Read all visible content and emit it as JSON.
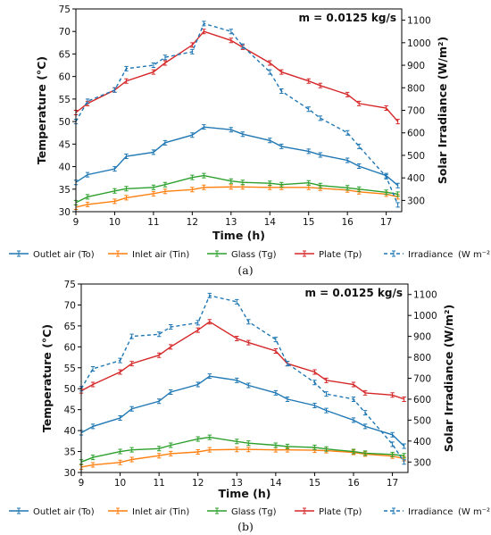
{
  "chart_data": [
    {
      "type": "line",
      "caption": "(a)",
      "annotation": "m = 0.0125 kg/s",
      "xlabel": "Time (h)",
      "ylabel": "Temperature (°C)",
      "y2label": "Solar Irradiance (W/m²)",
      "xlim": [
        9,
        17.4
      ],
      "ylim": [
        30,
        75
      ],
      "y2lim": [
        250,
        1150
      ],
      "xticks": [
        "9",
        "10",
        "11",
        "12",
        "13",
        "14",
        "15",
        "16",
        "17"
      ],
      "yticks": [
        "30",
        "35",
        "40",
        "45",
        "50",
        "55",
        "60",
        "65",
        "70",
        "75"
      ],
      "y2ticks": [
        "300",
        "400",
        "500",
        "600",
        "700",
        "800",
        "900",
        "1000",
        "1100"
      ],
      "legend_placement": "bottom",
      "series": [
        {
          "name": "Outlet air (To)",
          "color": "#1f77b4",
          "axis": "left",
          "style": "solid",
          "x": [
            9,
            9.3,
            10,
            10.3,
            11,
            11.3,
            12,
            12.3,
            13,
            13.3,
            14,
            14.3,
            15,
            15.3,
            16,
            16.3,
            17,
            17.3
          ],
          "y": [
            36.5,
            38.2,
            39.5,
            42.3,
            43.2,
            45.3,
            47.0,
            48.8,
            48.2,
            47.2,
            45.8,
            44.5,
            43.4,
            42.6,
            41.4,
            40.1,
            38.0,
            35.8
          ]
        },
        {
          "name": "Inlet air (Tin)",
          "color": "#ff7f0e",
          "axis": "left",
          "style": "solid",
          "x": [
            9,
            9.3,
            10,
            10.3,
            11,
            11.3,
            12,
            12.3,
            13,
            13.3,
            14,
            14.3,
            15,
            15.3,
            16,
            16.3,
            17,
            17.3
          ],
          "y": [
            31.0,
            31.6,
            32.3,
            33.1,
            34.0,
            34.5,
            34.9,
            35.4,
            35.5,
            35.5,
            35.4,
            35.4,
            35.4,
            35.2,
            34.8,
            34.4,
            33.9,
            33.3
          ]
        },
        {
          "name": "Glass (Tg)",
          "color": "#2ca02c",
          "axis": "left",
          "style": "solid",
          "x": [
            9,
            9.3,
            10,
            10.3,
            11,
            11.3,
            12,
            12.3,
            13,
            13.3,
            14,
            14.3,
            15,
            15.3,
            16,
            16.3,
            17,
            17.3
          ],
          "y": [
            32.0,
            33.3,
            34.6,
            35.1,
            35.4,
            36.0,
            37.6,
            38.0,
            36.8,
            36.5,
            36.3,
            36.0,
            36.4,
            35.8,
            35.3,
            35.0,
            34.3,
            33.9
          ]
        },
        {
          "name": "Plate (Tp)",
          "color": "#d62728",
          "axis": "left",
          "style": "solid",
          "x": [
            9,
            9.3,
            10,
            10.3,
            11,
            11.3,
            12,
            12.3,
            13,
            13.3,
            14,
            14.3,
            15,
            15.3,
            16,
            16.3,
            17,
            17.3
          ],
          "y": [
            52.0,
            54.0,
            57.0,
            59.0,
            61.0,
            63.0,
            67.0,
            70.0,
            68.0,
            66.5,
            63.0,
            61.0,
            59.0,
            58.0,
            56.0,
            54.0,
            53.0,
            50.0
          ]
        },
        {
          "name": "Irradiance",
          "name_unit": "(W m⁻²)",
          "color": "#1f77b4",
          "axis": "right",
          "style": "dashed",
          "x": [
            9,
            9.3,
            10,
            10.3,
            11,
            11.3,
            12,
            12.3,
            13,
            13.3,
            14,
            14.3,
            15,
            15.3,
            16,
            16.3,
            17,
            17.3
          ],
          "y": [
            650,
            740,
            790,
            885,
            900,
            935,
            960,
            1085,
            1050,
            985,
            870,
            785,
            705,
            665,
            600,
            540,
            405,
            280
          ]
        }
      ]
    },
    {
      "type": "line",
      "caption": "(b)",
      "annotation": "m = 0.0125 kg/s",
      "xlabel": "Time (h)",
      "ylabel": "Temperature (°C)",
      "y2label": "Solar Irradiance (W/m²)",
      "xlim": [
        9,
        17.4
      ],
      "ylim": [
        30,
        75
      ],
      "y2lim": [
        250,
        1150
      ],
      "xticks": [
        "9",
        "10",
        "11",
        "12",
        "13",
        "14",
        "15",
        "16",
        "17"
      ],
      "yticks": [
        "30",
        "35",
        "40",
        "45",
        "50",
        "55",
        "60",
        "65",
        "70",
        "75"
      ],
      "y2ticks": [
        "300",
        "400",
        "500",
        "600",
        "700",
        "800",
        "900",
        "1000",
        "1100"
      ],
      "legend_placement": "bottom",
      "series": [
        {
          "name": "Outlet air (To)",
          "color": "#1f77b4",
          "axis": "left",
          "style": "solid",
          "x": [
            9,
            9.3,
            10,
            10.3,
            11,
            11.3,
            12,
            12.3,
            13,
            13.3,
            14,
            14.3,
            15,
            15.3,
            16,
            16.3,
            17,
            17.3
          ],
          "y": [
            39.5,
            41.0,
            43.0,
            45.2,
            47.0,
            49.2,
            51.0,
            53.0,
            52.0,
            50.8,
            49.0,
            47.5,
            46.0,
            44.8,
            42.5,
            41.0,
            39.0,
            36.3
          ]
        },
        {
          "name": "Inlet air (Tin)",
          "color": "#ff7f0e",
          "axis": "left",
          "style": "solid",
          "x": [
            9,
            9.3,
            10,
            10.3,
            11,
            11.3,
            12,
            12.3,
            13,
            13.3,
            14,
            14.3,
            15,
            15.3,
            16,
            16.3,
            17,
            17.3
          ],
          "y": [
            31.3,
            31.8,
            32.4,
            33.1,
            34.0,
            34.5,
            34.9,
            35.4,
            35.5,
            35.5,
            35.4,
            35.4,
            35.3,
            35.2,
            34.8,
            34.4,
            33.9,
            33.3
          ]
        },
        {
          "name": "Glass (Tg)",
          "color": "#2ca02c",
          "axis": "left",
          "style": "solid",
          "x": [
            9,
            9.3,
            10,
            10.3,
            11,
            11.3,
            12,
            12.3,
            13,
            13.3,
            14,
            14.3,
            15,
            15.3,
            16,
            16.3,
            17,
            17.3
          ],
          "y": [
            32.5,
            33.6,
            35.0,
            35.4,
            35.7,
            36.5,
            38.0,
            38.4,
            37.4,
            37.0,
            36.5,
            36.2,
            36.0,
            35.6,
            35.0,
            34.6,
            34.3,
            34.0
          ]
        },
        {
          "name": "Plate (Tp)",
          "color": "#d62728",
          "axis": "left",
          "style": "solid",
          "x": [
            9,
            9.3,
            10,
            10.3,
            11,
            11.3,
            12,
            12.3,
            13,
            13.3,
            14,
            14.3,
            15,
            15.3,
            16,
            16.3,
            17,
            17.3
          ],
          "y": [
            49.5,
            51.0,
            54.0,
            56.0,
            58.0,
            60.0,
            64.0,
            66.0,
            62.0,
            61.0,
            59.0,
            56.0,
            54.0,
            52.0,
            51.0,
            49.0,
            48.5,
            47.5
          ]
        },
        {
          "name": "Irradiance",
          "name_unit": "(W m⁻²)",
          "color": "#1f77b4",
          "axis": "right",
          "style": "dashed",
          "x": [
            9,
            9.3,
            10,
            10.3,
            11,
            11.3,
            12,
            12.3,
            13,
            13.3,
            14,
            14.3,
            15,
            15.3,
            16,
            16.3,
            17,
            17.3
          ],
          "y": [
            650,
            745,
            785,
            900,
            910,
            945,
            965,
            1095,
            1065,
            970,
            885,
            770,
            680,
            625,
            600,
            535,
            385,
            300
          ]
        }
      ]
    }
  ]
}
